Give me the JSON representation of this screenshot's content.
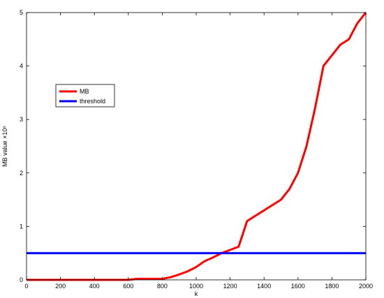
{
  "chart_data": {
    "type": "line",
    "title": "",
    "xlabel": "k",
    "ylabel": "MB value ×10⁶",
    "xlim": [
      0,
      2000
    ],
    "ylim": [
      0,
      5
    ],
    "xticks": [
      0,
      200,
      400,
      600,
      800,
      1000,
      1200,
      1400,
      1600,
      1800,
      2000
    ],
    "yticks": [
      0,
      1,
      2,
      3,
      4,
      5
    ],
    "xtick_labels": [
      "0",
      "200",
      "400",
      "600",
      "800",
      "1000",
      "1200",
      "1400",
      "1600",
      "1800",
      "2000"
    ],
    "ytick_labels": [
      "0",
      "1",
      "2",
      "3",
      "4",
      "5"
    ],
    "grid": false,
    "legend_position": "left",
    "series": [
      {
        "name": "MB",
        "color": "#ff0000",
        "x": [
          0,
          100,
          200,
          300,
          400,
          500,
          600,
          650,
          700,
          750,
          800,
          850,
          900,
          950,
          1000,
          1050,
          1100,
          1150,
          1200,
          1250,
          1300,
          1350,
          1400,
          1450,
          1500,
          1550,
          1600,
          1650,
          1700,
          1750,
          1800,
          1850,
          1900,
          1950,
          2000
        ],
        "y": [
          0,
          0,
          0,
          0,
          0,
          0,
          0,
          0.02,
          0.02,
          0.02,
          0.02,
          0.05,
          0.1,
          0.16,
          0.24,
          0.35,
          0.42,
          0.5,
          0.56,
          0.62,
          1.1,
          1.2,
          1.3,
          1.4,
          1.5,
          1.7,
          2.0,
          2.5,
          3.2,
          4.0,
          4.2,
          4.4,
          4.5,
          4.8,
          5.0
        ]
      },
      {
        "name": "threshold",
        "color": "#0000ff",
        "x": [
          0,
          2000
        ],
        "y": [
          0.5,
          0.5
        ]
      }
    ]
  }
}
